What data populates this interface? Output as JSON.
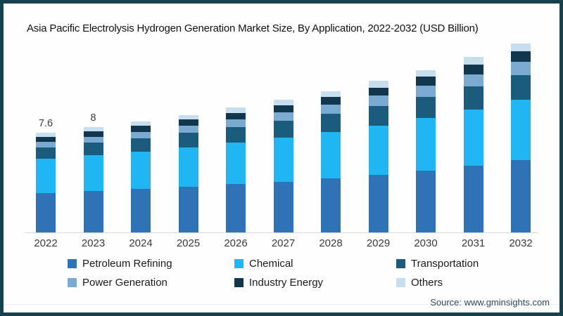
{
  "frame": {
    "border_color": "#16424F",
    "background": "#FEFEFE"
  },
  "title": "Asia Pacific Electrolysis Hydrogen Generation Market Size, By Application, 2022-2032 (USD Billion)",
  "source": "Source: www.gminsights.com",
  "chart_data": {
    "type": "bar",
    "stacked": true,
    "title": "Asia Pacific Electrolysis Hydrogen Generation Market Size, By Application, 2022-2032 (USD Billion)",
    "unit": "USD Billion",
    "categories": [
      "2022",
      "2023",
      "2024",
      "2025",
      "2026",
      "2027",
      "2028",
      "2029",
      "2030",
      "2031",
      "2032"
    ],
    "series": [
      {
        "name": "Petroleum Refining",
        "color": "#2F72B5",
        "values": [
          3.0,
          3.15,
          3.3,
          3.47,
          3.66,
          3.87,
          4.1,
          4.38,
          4.7,
          5.08,
          5.5
        ]
      },
      {
        "name": "Chemical",
        "color": "#1FB6F3",
        "values": [
          2.6,
          2.72,
          2.85,
          3.0,
          3.17,
          3.35,
          3.54,
          3.77,
          4.02,
          4.3,
          4.6
        ]
      },
      {
        "name": "Transportation",
        "color": "#1B5C7C",
        "values": [
          0.9,
          0.97,
          1.04,
          1.12,
          1.2,
          1.29,
          1.39,
          1.5,
          1.62,
          1.75,
          1.9
        ]
      },
      {
        "name": "Power Generation",
        "color": "#7AA9D2",
        "values": [
          0.4,
          0.44,
          0.48,
          0.53,
          0.58,
          0.64,
          0.7,
          0.77,
          0.84,
          0.92,
          1.0
        ]
      },
      {
        "name": "Industry Energy",
        "color": "#11374E",
        "values": [
          0.4,
          0.42,
          0.44,
          0.47,
          0.5,
          0.53,
          0.57,
          0.62,
          0.67,
          0.73,
          0.8
        ]
      },
      {
        "name": "Others",
        "color": "#C7DEEF",
        "values": [
          0.3,
          0.3,
          0.33,
          0.36,
          0.39,
          0.42,
          0.45,
          0.49,
          0.53,
          0.57,
          0.6
        ]
      }
    ],
    "totals_estimated": [
      7.6,
      8.0,
      8.4,
      8.9,
      9.5,
      10.1,
      10.7,
      11.5,
      12.4,
      13.3,
      14.4
    ],
    "total_labels": [
      "7.6",
      "8",
      "",
      "",
      "",
      "",
      "",
      "",
      "",
      "",
      ""
    ],
    "ylim": [
      0,
      15
    ],
    "grid": false,
    "y_axis_shown": false,
    "legend_position": "bottom",
    "axis_line_color": "#D9D9D9",
    "data_label_color": "#3D3D3D"
  }
}
